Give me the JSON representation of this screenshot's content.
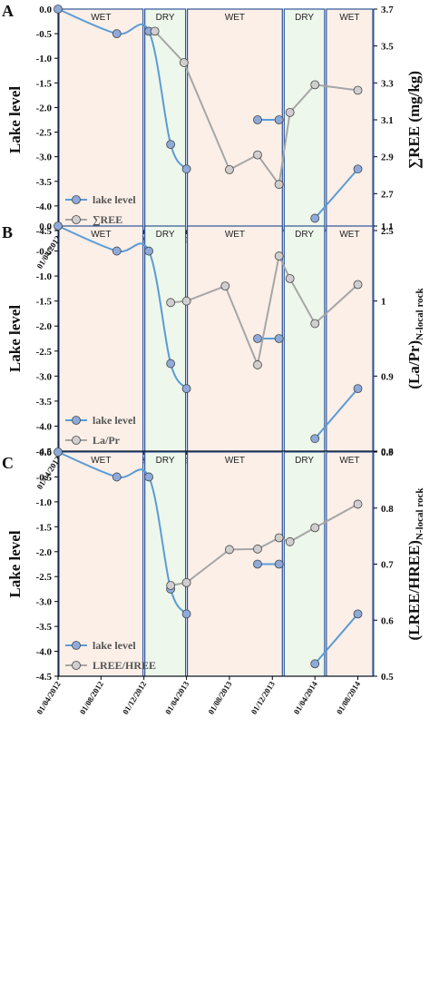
{
  "colors": {
    "lake_line": "#5b9bd5",
    "lake_marker": "#8eaadb",
    "ree_line": "#a6a6a6",
    "ree_marker": "#d0cece",
    "wet_fill": "#fbefe8",
    "dry_fill": "#eef7ec",
    "panel_border": "#2f5597"
  },
  "chart_data": [
    {
      "panel_label": "A",
      "type": "line",
      "ylabel_left": "Lake level",
      "ylabel_right": "∑REE (mg/kg)",
      "ylim_left": [
        -4.5,
        0.0
      ],
      "ylim_right": [
        2.5,
        3.7
      ],
      "yticks_left": [
        "0.0",
        "-0.5",
        "-1.0",
        "-1.5",
        "-2.0",
        "-2.5",
        "-3.0",
        "-3.5",
        "-4.0",
        "-4.5"
      ],
      "yticks_right": [
        "3.7",
        "3.5",
        "3.3",
        "3.1",
        "2.9",
        "2.7",
        "2.5"
      ],
      "xticks": [
        "01/04/2012",
        "01/08/2012",
        "01/12/2012",
        "01/04/2013",
        "01/08/2013",
        "01/12/2013",
        "01/04/2014",
        "01/08/2014"
      ],
      "seasons": [
        {
          "label": "WET",
          "start": "2012-04-01",
          "end": "2012-12-01"
        },
        {
          "label": "DRY",
          "start": "2012-12-01",
          "end": "2013-04-01"
        },
        {
          "label": "WET",
          "start": "2013-04-01",
          "end": "2014-01-01"
        },
        {
          "label": "DRY",
          "start": "2014-01-01",
          "end": "2014-05-01"
        },
        {
          "label": "WET",
          "start": "2014-05-01",
          "end": "2014-09-15"
        }
      ],
      "series": [
        {
          "name": "lake level",
          "axis": "left",
          "segments": [
            [
              [
                "2012-04-01",
                0.0
              ],
              [
                "2012-09-15",
                -0.5
              ],
              [
                "2012-12-15",
                -0.45
              ],
              [
                "2013-02-15",
                -2.75
              ],
              [
                "2013-04-01",
                -3.25
              ]
            ],
            [
              [
                "2013-10-20",
                -2.25
              ],
              [
                "2013-12-20",
                -2.25
              ]
            ],
            [
              [
                "2014-04-01",
                -4.25
              ],
              [
                "2014-08-01",
                -3.25
              ]
            ]
          ]
        },
        {
          "name": "∑REE",
          "axis": "right",
          "segments": [
            [
              [
                "2013-01-01",
                3.58
              ],
              [
                "2013-03-25",
                3.41
              ],
              [
                "2013-08-01",
                2.83
              ],
              [
                "2013-10-20",
                2.91
              ],
              [
                "2013-12-20",
                2.75
              ],
              [
                "2014-01-20",
                3.14
              ],
              [
                "2014-04-01",
                3.29
              ],
              [
                "2014-08-01",
                3.26
              ]
            ]
          ]
        }
      ]
    },
    {
      "panel_label": "B",
      "type": "line",
      "ylabel_left": "Lake level",
      "ylabel_right": "(La/Pr)N-local rock",
      "ylim_left": [
        -4.5,
        0.0
      ],
      "ylim_right": [
        0.8,
        1.1
      ],
      "yticks_left": [
        "0.0",
        "-0.5",
        "-1.0",
        "-1.5",
        "-2.0",
        "-2.5",
        "-3.0",
        "-3.5",
        "-4.0",
        "-4.5"
      ],
      "yticks_right": [
        "1.1",
        "1",
        "0.9",
        "0.8"
      ],
      "xticks": [
        "01/04/2012",
        "01/08/2012",
        "01/12/2012",
        "01/04/2013",
        "01/08/2013",
        "01/12/2013",
        "01/04/2014",
        "01/08/2014"
      ],
      "seasons": [
        {
          "label": "WET",
          "start": "2012-04-01",
          "end": "2012-12-01"
        },
        {
          "label": "DRY",
          "start": "2012-12-01",
          "end": "2013-04-01"
        },
        {
          "label": "WET",
          "start": "2013-04-01",
          "end": "2014-01-01"
        },
        {
          "label": "DRY",
          "start": "2014-01-01",
          "end": "2014-05-01"
        },
        {
          "label": "WET",
          "start": "2014-05-01",
          "end": "2014-09-15"
        }
      ],
      "series": [
        {
          "name": "lake level",
          "axis": "left",
          "segments": [
            [
              [
                "2012-04-01",
                0.0
              ],
              [
                "2012-09-15",
                -0.5
              ],
              [
                "2012-12-15",
                -0.5
              ],
              [
                "2013-02-15",
                -2.75
              ],
              [
                "2013-04-01",
                -3.25
              ]
            ],
            [
              [
                "2013-10-20",
                -2.25
              ],
              [
                "2013-12-20",
                -2.25
              ]
            ],
            [
              [
                "2014-04-01",
                -4.25
              ],
              [
                "2014-08-01",
                -3.25
              ]
            ]
          ]
        },
        {
          "name": "La/Pr",
          "axis": "right",
          "segments": [
            [
              [
                "2013-02-15",
                0.998
              ],
              [
                "2013-04-01",
                1.0
              ],
              [
                "2013-07-20",
                1.02
              ],
              [
                "2013-10-20",
                0.915
              ],
              [
                "2013-12-20",
                1.06
              ],
              [
                "2014-01-20",
                1.03
              ],
              [
                "2014-04-01",
                0.97
              ],
              [
                "2014-08-01",
                1.022
              ]
            ]
          ]
        }
      ]
    },
    {
      "panel_label": "C",
      "type": "line",
      "ylabel_left": "Lake level",
      "ylabel_right": "(LREE/HREE)N-local rock",
      "ylim_left": [
        -4.5,
        0.0
      ],
      "ylim_right": [
        0.5,
        0.9
      ],
      "yticks_left": [
        "0.0",
        "-0.5",
        "-1.0",
        "-1.5",
        "-2.0",
        "-2.5",
        "-3.0",
        "-3.5",
        "-4.0",
        "-4.5"
      ],
      "yticks_right": [
        "0.9",
        "0.8",
        "0.7",
        "0.6",
        "0.5"
      ],
      "xticks": [
        "01/04/2012",
        "01/08/2012",
        "01/12/2012",
        "01/04/2013",
        "01/08/2013",
        "01/12/2013",
        "01/04/2014",
        "01/08/2014"
      ],
      "seasons": [
        {
          "label": "WET",
          "start": "2012-04-01",
          "end": "2012-12-01"
        },
        {
          "label": "DRY",
          "start": "2012-12-01",
          "end": "2013-04-01"
        },
        {
          "label": "WET",
          "start": "2013-04-01",
          "end": "2014-01-01"
        },
        {
          "label": "DRY",
          "start": "2014-01-01",
          "end": "2014-05-01"
        },
        {
          "label": "WET",
          "start": "2014-05-01",
          "end": "2014-09-15"
        }
      ],
      "series": [
        {
          "name": "lake level",
          "axis": "left",
          "segments": [
            [
              [
                "2012-04-01",
                0.0
              ],
              [
                "2012-09-15",
                -0.5
              ],
              [
                "2012-12-15",
                -0.5
              ],
              [
                "2013-02-15",
                -2.75
              ],
              [
                "2013-04-01",
                -3.25
              ]
            ],
            [
              [
                "2013-10-20",
                -2.25
              ],
              [
                "2013-12-20",
                -2.25
              ]
            ],
            [
              [
                "2014-04-01",
                -4.25
              ],
              [
                "2014-08-01",
                -3.25
              ]
            ]
          ]
        },
        {
          "name": "LREE/HREE",
          "axis": "right",
          "segments": [
            [
              [
                "2013-02-15",
                0.662
              ],
              [
                "2013-04-01",
                0.667
              ],
              [
                "2013-08-01",
                0.726
              ],
              [
                "2013-10-20",
                0.727
              ],
              [
                "2013-12-20",
                0.747
              ],
              [
                "2014-01-20",
                0.74
              ],
              [
                "2014-04-01",
                0.765
              ],
              [
                "2014-08-01",
                0.807
              ]
            ]
          ]
        }
      ]
    }
  ]
}
